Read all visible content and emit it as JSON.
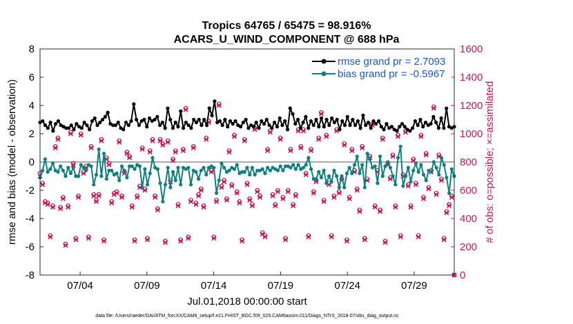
{
  "chart_data": {
    "type": "line",
    "title_line1": "Tropics 64765 / 65475 = 98.916%",
    "title_line2": "ACARS_U_WIND_COMPONENT @ 688 hPa",
    "ylabel_left": "rmse and bias (model - observation)",
    "ylabel_right": "# of obs: o=possible; ×=assimilated",
    "xlabel": "Jul.01,2018 00:00:00 start",
    "footnote": "data file: /Users/raeder/DAI/ATM_forcXX/CAM6_setup/f.e21.FHIST_BGC.f09_025.CAM6assim.011/Diags_NTrS_2018-07/obs_diag_output.nc",
    "x_range": [
      1,
      32
    ],
    "ylim_left": [
      -8,
      8
    ],
    "ylim_right": [
      0,
      1600
    ],
    "yticks_left": [
      "-8",
      "-6",
      "-4",
      "-2",
      "0",
      "2",
      "4",
      "6",
      "8"
    ],
    "yticks_right": [
      "0",
      "200",
      "400",
      "600",
      "800",
      "1000",
      "1200",
      "1400",
      "1600"
    ],
    "xticks": [
      {
        "day": 4,
        "label": "07/04"
      },
      {
        "day": 9,
        "label": "07/09"
      },
      {
        "day": 14,
        "label": "07/14"
      },
      {
        "day": 19,
        "label": "07/19"
      },
      {
        "day": 24,
        "label": "07/24"
      },
      {
        "day": 29,
        "label": "07/29"
      }
    ],
    "colors": {
      "rmse": "#000000",
      "bias": "#0f8080",
      "obs": "#cc1456",
      "zero_line": "#aaaaaa",
      "legend_rmse": "#1a55d8",
      "legend_bias": "#1a55d8"
    },
    "series": [
      {
        "name": "rmse grand pr = 2.7093",
        "key": "rmse",
        "values": [
          2.8,
          2.9,
          2.6,
          2.4,
          2.8,
          2.2,
          2.7,
          2.9,
          2.6,
          2.5,
          2.4,
          2.4,
          2.6,
          2.3,
          2.7,
          2.5,
          2.4,
          2.8,
          2.6,
          2.3,
          2.9,
          3.1,
          2.6,
          2.8,
          3.0,
          3.2,
          3.5,
          2.7,
          2.6,
          2.6,
          2.8,
          2.4,
          2.3,
          2.8,
          2.6,
          2.9,
          4.1,
          3.0,
          2.6,
          2.9,
          3.0,
          2.5,
          3.1,
          2.9,
          3.0,
          3.2,
          2.6,
          2.8,
          2.4,
          3.8,
          3.0,
          2.4,
          2.8,
          2.5,
          3.6,
          2.4,
          2.8,
          2.6,
          2.4,
          3.0,
          2.8,
          3.0,
          2.6,
          3.0,
          2.6,
          3.8,
          3.3,
          4.3,
          2.8,
          2.9,
          2.6,
          3.0,
          2.5,
          2.9,
          2.7,
          2.9,
          2.6,
          2.5,
          2.8,
          3.0,
          2.4,
          2.6,
          2.5,
          2.8,
          2.4,
          2.9,
          2.7,
          3.0,
          2.6,
          2.4,
          2.8,
          2.5,
          3.1,
          2.6,
          2.9,
          2.3,
          3.8,
          3.4,
          2.7,
          3.0,
          2.4,
          2.8,
          3.2,
          2.4,
          2.9,
          2.6,
          3.0,
          2.5,
          3.1,
          2.5,
          3.0,
          2.6,
          3.1,
          2.8,
          3.0,
          2.3,
          2.9,
          2.6,
          3.2,
          2.6,
          3.0,
          2.6,
          2.9,
          2.4,
          3.3,
          2.6,
          2.8,
          2.4,
          2.9,
          2.7,
          2.9,
          2.5,
          2.3,
          2.7,
          2.4,
          2.5,
          2.3,
          2.2,
          2.5,
          2.7,
          2.5,
          2.3,
          2.2,
          2.4,
          2.9,
          2.6,
          3.0,
          2.5,
          2.8,
          2.6,
          2.7,
          3.2,
          2.8,
          2.4,
          3.1,
          2.4,
          3.8,
          2.5,
          2.4,
          2.5
        ],
        "bias_unused": ""
      },
      {
        "name": "bias grand pr = -0.5967",
        "key": "bias",
        "values": [
          -1.1,
          -0.6,
          0.2,
          -0.7,
          -0.5,
          -0.1,
          -0.6,
          -0.7,
          -0.3,
          -0.6,
          -1.0,
          -0.4,
          -0.8,
          -0.4,
          -1.0,
          -1.0,
          -0.2,
          -0.4,
          -0.6,
          -0.2,
          -0.3,
          -1.6,
          -0.9,
          0.9,
          -1.0,
          0.6,
          -1.2,
          -0.6,
          -0.6,
          -0.9,
          -0.8,
          -1.3,
          -0.3,
          -0.6,
          -1.1,
          -0.3,
          -0.3,
          -0.5,
          -0.2,
          -0.3,
          -1.8,
          -0.5,
          -1.6,
          -0.8,
          0.3,
          -0.4,
          -0.5,
          -1.5,
          -2.8,
          -1.6,
          -0.4,
          -1.8,
          -0.7,
          -1.3,
          -0.4,
          -1.6,
          -0.4,
          -0.5,
          -0.4,
          -1.6,
          -0.6,
          -0.7,
          -1.2,
          -0.6,
          -0.4,
          -0.9,
          -0.4,
          -0.3,
          -0.4,
          -2.2,
          -1.3,
          -0.1,
          -0.4,
          -0.7,
          -0.6,
          -0.4,
          -0.5,
          -0.2,
          -0.8,
          -0.7,
          -0.7,
          -0.4,
          -0.9,
          -0.4,
          -0.9,
          -0.6,
          -0.6,
          -0.5,
          -0.8,
          -0.4,
          -0.6,
          -0.4,
          -0.5,
          -0.6,
          -0.3,
          -0.6,
          -0.3,
          -0.3,
          -0.4,
          -0.2,
          -0.5,
          -0.2,
          -0.5,
          -0.4,
          -0.2,
          0.3,
          -0.5,
          -1.2,
          -1.2,
          -0.7,
          -1.1,
          -0.6,
          -1.5,
          -1.0,
          -1.4,
          -0.6,
          -1.0,
          -1.8,
          -1.0,
          -1.8,
          -0.8,
          -0.4,
          -0.8,
          -0.2,
          0.4,
          -0.8,
          -0.2,
          -1.8,
          0.6,
          0.2,
          -0.4,
          -0.3,
          -1.5,
          0.4,
          -1.0,
          -0.3,
          0.0,
          -0.4,
          -1.0,
          -1.6,
          0.3,
          1.1,
          -1.7,
          -1.0,
          -0.4,
          -1.4,
          -0.6,
          -0.1,
          -0.7,
          -0.2,
          -0.9,
          -1.3,
          -0.6,
          -0.7,
          0.0,
          -0.4,
          -0.9,
          0.3,
          -0.2,
          -1.1,
          -2.2,
          -0.5,
          -1.0
        ]
      }
    ],
    "obs_assimilated": [
      700,
      640,
      510,
      500,
      270,
      480,
      900,
      960,
      470,
      540,
      210,
      480,
      1000,
      780,
      250,
      550,
      990,
      720,
      760,
      260,
      900,
      560,
      520,
      560,
      950,
      240,
      820,
      780,
      510,
      570,
      580,
      940,
      550,
      720,
      860,
      830,
      480,
      240,
      550,
      620,
      890,
      600,
      250,
      870,
      950,
      550,
      460,
      950,
      920,
      230,
      940,
      660,
      810,
      870,
      490,
      240,
      880,
      1170,
      260,
      520,
      900,
      500,
      560,
      600,
      480,
      960,
      1080,
      730,
      260,
      520,
      1200,
      620,
      660,
      530,
      870,
      630,
      980,
      580,
      510,
      240,
      950,
      640,
      530,
      490,
      1030,
      590,
      550,
      290,
      270,
      880,
      1010,
      560,
      490,
      590,
      960,
      540,
      250,
      590,
      880,
      490,
      560,
      1020,
      900,
      1020,
      710,
      270,
      880,
      580,
      660,
      960,
      1140,
      520,
      980,
      640,
      270,
      550,
      1020,
      580,
      670,
      920,
      240,
      540,
      880,
      730,
      600,
      450,
      900,
      250,
      670,
      830,
      1060,
      480,
      730,
      450,
      960,
      230,
      780,
      680,
      840,
      480,
      980,
      270,
      700,
      1010,
      630,
      480,
      810,
      640,
      270,
      980,
      540,
      850,
      610,
      730,
      1180,
      570,
      840,
      670,
      250,
      440,
      490,
      550,
      0
    ],
    "obs_possible": [
      720,
      650,
      520,
      510,
      280,
      490,
      910,
      970,
      480,
      550,
      220,
      490,
      1010,
      790,
      260,
      560,
      1000,
      730,
      770,
      270,
      910,
      570,
      530,
      570,
      960,
      250,
      830,
      790,
      520,
      580,
      590,
      950,
      560,
      730,
      870,
      840,
      490,
      250,
      560,
      630,
      900,
      610,
      260,
      880,
      960,
      560,
      470,
      960,
      930,
      240,
      950,
      670,
      820,
      880,
      500,
      250,
      890,
      1180,
      270,
      530,
      910,
      510,
      570,
      610,
      490,
      970,
      1090,
      740,
      270,
      530,
      1210,
      630,
      670,
      540,
      880,
      640,
      990,
      590,
      520,
      250,
      960,
      650,
      540,
      500,
      1040,
      600,
      560,
      300,
      280,
      890,
      1020,
      570,
      500,
      600,
      970,
      550,
      260,
      600,
      890,
      500,
      570,
      1030,
      910,
      1030,
      720,
      280,
      890,
      590,
      670,
      970,
      1150,
      530,
      990,
      650,
      280,
      560,
      1030,
      590,
      680,
      930,
      250,
      550,
      890,
      740,
      610,
      460,
      910,
      260,
      680,
      840,
      1070,
      490,
      740,
      460,
      970,
      240,
      790,
      690,
      850,
      490,
      990,
      280,
      710,
      1020,
      640,
      490,
      820,
      650,
      280,
      990,
      550,
      860,
      620,
      740,
      1190,
      580,
      850,
      680,
      260,
      450,
      500,
      560,
      0
    ]
  }
}
